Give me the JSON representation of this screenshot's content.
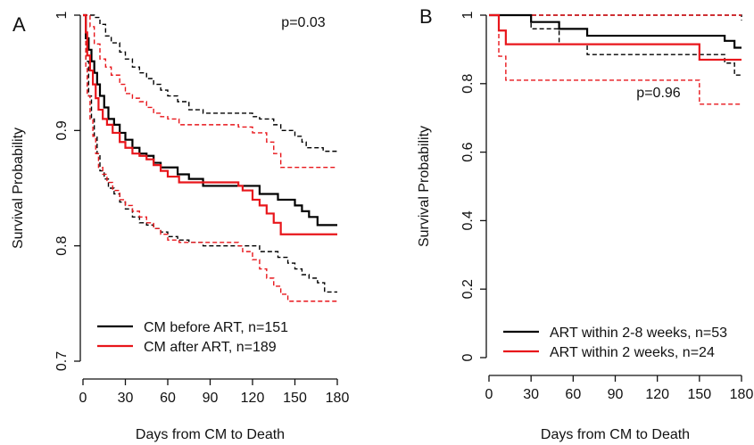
{
  "chart_data": [
    {
      "panel": "A",
      "type": "line",
      "step": true,
      "xlabel": "Days from CM to Death",
      "ylabel": "Survival Probability",
      "xlim": [
        0,
        180
      ],
      "ylim": [
        0.7,
        1.0
      ],
      "xticks": [
        0,
        30,
        60,
        90,
        120,
        150,
        180
      ],
      "xtick_labels": [
        "0",
        "30",
        "60",
        "90",
        "120",
        "150",
        "180"
      ],
      "yticks": [
        0.7,
        0.8,
        0.9,
        1.0
      ],
      "ytick_labels": [
        "0.7",
        "0.8",
        "0.9",
        "1"
      ],
      "annotation": "p=0.03",
      "legend_position": "bottom-left",
      "grid": false,
      "series": [
        {
          "name": "CM before ART, n=151",
          "color": "#000000",
          "dash": false,
          "x": [
            0,
            2,
            4,
            6,
            8,
            10,
            12,
            15,
            18,
            22,
            26,
            30,
            35,
            40,
            45,
            50,
            55,
            60,
            67,
            75,
            85,
            110,
            125,
            138,
            145,
            150,
            155,
            160,
            166,
            180
          ],
          "y": [
            1.0,
            0.98,
            0.97,
            0.96,
            0.95,
            0.94,
            0.93,
            0.92,
            0.91,
            0.905,
            0.898,
            0.892,
            0.885,
            0.88,
            0.878,
            0.872,
            0.868,
            0.868,
            0.862,
            0.858,
            0.852,
            0.852,
            0.845,
            0.84,
            0.84,
            0.835,
            0.83,
            0.825,
            0.818,
            0.818
          ]
        },
        {
          "name": "CM after ART, n=189",
          "color": "#e8161b",
          "dash": false,
          "x": [
            0,
            2,
            3,
            5,
            7,
            9,
            11,
            14,
            17,
            21,
            26,
            30,
            35,
            40,
            45,
            50,
            55,
            60,
            68,
            75,
            90,
            110,
            113,
            120,
            125,
            130,
            135,
            140,
            180
          ],
          "y": [
            1.0,
            0.985,
            0.965,
            0.952,
            0.94,
            0.928,
            0.918,
            0.91,
            0.905,
            0.898,
            0.89,
            0.885,
            0.88,
            0.878,
            0.875,
            0.87,
            0.865,
            0.86,
            0.855,
            0.855,
            0.855,
            0.852,
            0.848,
            0.84,
            0.835,
            0.828,
            0.82,
            0.81,
            0.81
          ]
        },
        {
          "name": "CM before ART, upper 95% CI",
          "color": "#000000",
          "dash": true,
          "x": [
            0,
            4,
            8,
            12,
            16,
            20,
            26,
            30,
            35,
            40,
            45,
            50,
            55,
            60,
            67,
            75,
            85,
            110,
            120,
            125,
            135,
            140,
            150,
            155,
            158,
            165,
            170,
            180
          ],
          "y": [
            1.0,
            1.0,
            0.998,
            0.992,
            0.982,
            0.976,
            0.968,
            0.962,
            0.955,
            0.95,
            0.945,
            0.94,
            0.935,
            0.93,
            0.925,
            0.918,
            0.915,
            0.915,
            0.912,
            0.91,
            0.905,
            0.9,
            0.895,
            0.89,
            0.885,
            0.885,
            0.882,
            0.882
          ]
        },
        {
          "name": "CM before ART, lower 95% CI",
          "color": "#000000",
          "dash": true,
          "x": [
            0,
            2,
            4,
            6,
            8,
            10,
            12,
            15,
            18,
            22,
            26,
            30,
            35,
            40,
            45,
            50,
            55,
            60,
            67,
            75,
            85,
            110,
            125,
            138,
            145,
            150,
            155,
            160,
            166,
            171,
            180
          ],
          "y": [
            1.0,
            0.96,
            0.93,
            0.91,
            0.895,
            0.88,
            0.865,
            0.858,
            0.85,
            0.845,
            0.838,
            0.832,
            0.825,
            0.82,
            0.818,
            0.815,
            0.812,
            0.808,
            0.805,
            0.803,
            0.8,
            0.8,
            0.795,
            0.79,
            0.785,
            0.78,
            0.775,
            0.772,
            0.768,
            0.76,
            0.76
          ]
        },
        {
          "name": "CM after ART, upper 95% CI",
          "color": "#e8161b",
          "dash": true,
          "x": [
            0,
            3,
            5,
            8,
            12,
            16,
            20,
            26,
            30,
            35,
            40,
            45,
            50,
            55,
            60,
            68,
            75,
            90,
            110,
            120,
            130,
            135,
            140,
            180
          ],
          "y": [
            1.0,
            1.0,
            0.99,
            0.975,
            0.962,
            0.955,
            0.948,
            0.94,
            0.932,
            0.928,
            0.925,
            0.92,
            0.915,
            0.912,
            0.91,
            0.905,
            0.905,
            0.905,
            0.903,
            0.898,
            0.89,
            0.88,
            0.868,
            0.868
          ]
        },
        {
          "name": "CM after ART, lower 95% CI",
          "color": "#e8161b",
          "dash": true,
          "x": [
            0,
            2,
            3,
            5,
            7,
            9,
            11,
            14,
            17,
            21,
            26,
            30,
            35,
            40,
            45,
            50,
            55,
            60,
            68,
            75,
            90,
            110,
            113,
            120,
            125,
            130,
            135,
            140,
            145,
            180
          ],
          "y": [
            1.0,
            0.955,
            0.93,
            0.91,
            0.895,
            0.88,
            0.868,
            0.862,
            0.855,
            0.848,
            0.84,
            0.835,
            0.83,
            0.825,
            0.82,
            0.815,
            0.81,
            0.805,
            0.803,
            0.803,
            0.803,
            0.8,
            0.795,
            0.788,
            0.78,
            0.772,
            0.765,
            0.758,
            0.752,
            0.752
          ]
        }
      ]
    },
    {
      "panel": "B",
      "type": "line",
      "step": true,
      "xlabel": "Days from CM to Death",
      "ylabel": "Survival Probability",
      "xlim": [
        0,
        180
      ],
      "ylim": [
        0,
        1.0
      ],
      "xticks": [
        0,
        30,
        60,
        90,
        120,
        150,
        180
      ],
      "xtick_labels": [
        "0",
        "30",
        "60",
        "90",
        "120",
        "150",
        "180"
      ],
      "yticks": [
        0,
        0.2,
        0.4,
        0.6,
        0.8,
        1.0
      ],
      "ytick_labels": [
        "0",
        "0.2",
        "0.4",
        "0.6",
        "0.8",
        "1"
      ],
      "annotation": "p=0.96",
      "legend_position": "bottom-left",
      "grid": false,
      "series": [
        {
          "name": "ART within 2-8 weeks, n=53",
          "color": "#000000",
          "dash": false,
          "x": [
            0,
            30,
            50,
            70,
            168,
            175,
            180
          ],
          "y": [
            1.0,
            0.98,
            0.96,
            0.94,
            0.925,
            0.905,
            0.905
          ]
        },
        {
          "name": "ART within 2 weeks, n=24",
          "color": "#e8161b",
          "dash": false,
          "x": [
            0,
            7,
            12,
            150,
            180
          ],
          "y": [
            1.0,
            0.955,
            0.915,
            0.87,
            0.87
          ]
        },
        {
          "name": "ART within 2-8 weeks, upper 95% CI",
          "color": "#000000",
          "dash": true,
          "x": [
            0,
            168,
            180
          ],
          "y": [
            1.0,
            1.0,
            0.985
          ]
        },
        {
          "name": "ART within 2-8 weeks, lower 95% CI",
          "color": "#000000",
          "dash": true,
          "x": [
            0,
            30,
            50,
            70,
            168,
            175,
            180
          ],
          "y": [
            1.0,
            0.96,
            0.915,
            0.885,
            0.86,
            0.825,
            0.825
          ]
        },
        {
          "name": "ART within 2 weeks, upper 95% CI",
          "color": "#e8161b",
          "dash": true,
          "x": [
            0,
            175,
            180
          ],
          "y": [
            1.0,
            1.0,
            1.0
          ]
        },
        {
          "name": "ART within 2 weeks, lower 95% CI",
          "color": "#e8161b",
          "dash": true,
          "x": [
            0,
            7,
            12,
            150,
            180
          ],
          "y": [
            1.0,
            0.88,
            0.81,
            0.74,
            0.74
          ]
        }
      ]
    }
  ]
}
